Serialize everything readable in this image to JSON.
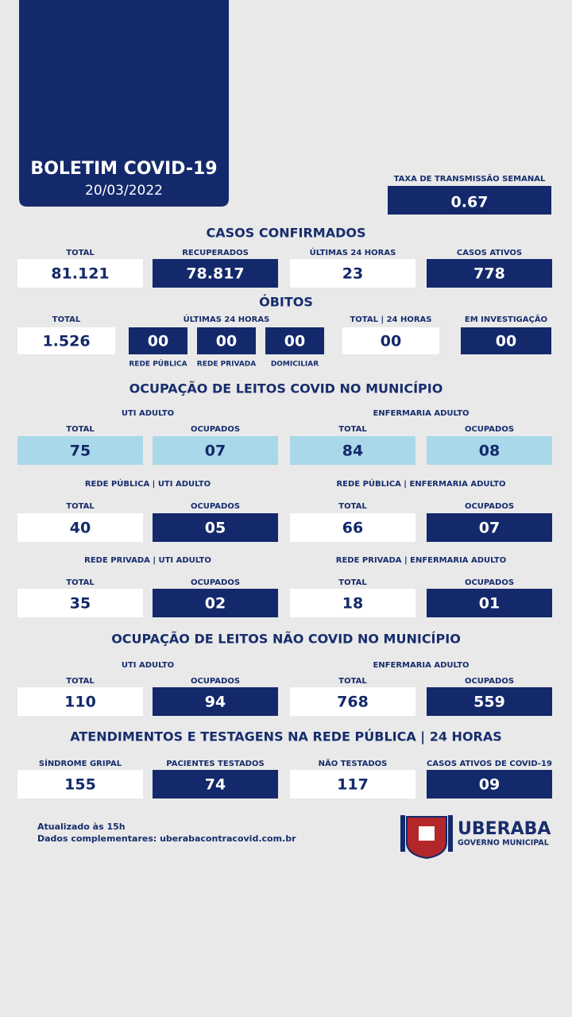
{
  "header": {
    "title": "BOLETIM COVID-19",
    "date": "20/03/2022"
  },
  "transmission": {
    "label": "TAXA DE TRANSMISSÃO SEMANAL",
    "value": "0.67"
  },
  "confirmed": {
    "title": "CASOS CONFIRMADOS",
    "cells": [
      {
        "label": "TOTAL",
        "value": "81.121"
      },
      {
        "label": "RECUPERADOS",
        "value": "78.817"
      },
      {
        "label": "ÚLTIMAS 24 HORAS",
        "value": "23"
      },
      {
        "label": "CASOS ATIVOS",
        "value": "778"
      }
    ]
  },
  "deaths": {
    "title": "ÓBITOS",
    "total": {
      "label": "TOTAL",
      "value": "1.526"
    },
    "last24": {
      "label": "ÚLTIMAS 24 HORAS",
      "cells": [
        {
          "value": "00",
          "label": "REDE PÚBLICA"
        },
        {
          "value": "00",
          "label": "REDE PRIVADA"
        },
        {
          "value": "00",
          "label": "DOMICILIAR"
        }
      ]
    },
    "total24": {
      "label": "TOTAL | 24 HORAS",
      "value": "00"
    },
    "investigation": {
      "label": "EM INVESTIGAÇÃO",
      "value": "00"
    }
  },
  "covid_beds": {
    "title": "OCUPAÇÃO DE LEITOS COVID NO MUNICÍPIO",
    "rows": [
      {
        "groups": [
          {
            "label": "UTI ADULTO",
            "cells": [
              {
                "label": "TOTAL",
                "value": "75"
              },
              {
                "label": "OCUPADOS",
                "value": "07"
              }
            ]
          },
          {
            "label": "ENFERMARIA ADULTO",
            "cells": [
              {
                "label": "TOTAL",
                "value": "84"
              },
              {
                "label": "OCUPADOS",
                "value": "08"
              }
            ]
          }
        ]
      },
      {
        "groups": [
          {
            "label": "REDE PÚBLICA | UTI ADULTO",
            "cells": [
              {
                "label": "TOTAL",
                "value": "40"
              },
              {
                "label": "OCUPADOS",
                "value": "05"
              }
            ]
          },
          {
            "label": "REDE PÚBLICA | ENFERMARIA ADULTO",
            "cells": [
              {
                "label": "TOTAL",
                "value": "66"
              },
              {
                "label": "OCUPADOS",
                "value": "07"
              }
            ]
          }
        ]
      },
      {
        "groups": [
          {
            "label": "REDE PRIVADA | UTI ADULTO",
            "cells": [
              {
                "label": "TOTAL",
                "value": "35"
              },
              {
                "label": "OCUPADOS",
                "value": "02"
              }
            ]
          },
          {
            "label": "REDE PRIVADA | ENFERMARIA ADULTO",
            "cells": [
              {
                "label": "TOTAL",
                "value": "18"
              },
              {
                "label": "OCUPADOS",
                "value": "01"
              }
            ]
          }
        ]
      }
    ]
  },
  "noncovid_beds": {
    "title": "OCUPAÇÃO DE LEITOS NÃO COVID NO MUNICÍPIO",
    "rows": [
      {
        "groups": [
          {
            "label": "UTI ADULTO",
            "cells": [
              {
                "label": "TOTAL",
                "value": "110"
              },
              {
                "label": "OCUPADOS",
                "value": "94"
              }
            ]
          },
          {
            "label": "ENFERMARIA ADULTO",
            "cells": [
              {
                "label": "TOTAL",
                "value": "768"
              },
              {
                "label": "OCUPADOS",
                "value": "559"
              }
            ]
          }
        ]
      }
    ]
  },
  "care": {
    "title": "ATENDIMENTOS E TESTAGENS NA REDE PÚBLICA | 24 HORAS",
    "cells": [
      {
        "label": "SÍNDROME GRIPAL",
        "value": "155"
      },
      {
        "label": "PACIENTES TESTADOS",
        "value": "74"
      },
      {
        "label": "NÃO TESTADOS",
        "value": "117"
      },
      {
        "label": "CASOS ATIVOS DE COVID-19",
        "value": "09"
      }
    ]
  },
  "footer": {
    "updated": "Atualizado às 15h",
    "more": "Dados complementares: uberabacontracovid.com.br"
  },
  "logo": {
    "name": "UBERABA",
    "subtitle": "GOVERNO MUNICIPAL"
  }
}
